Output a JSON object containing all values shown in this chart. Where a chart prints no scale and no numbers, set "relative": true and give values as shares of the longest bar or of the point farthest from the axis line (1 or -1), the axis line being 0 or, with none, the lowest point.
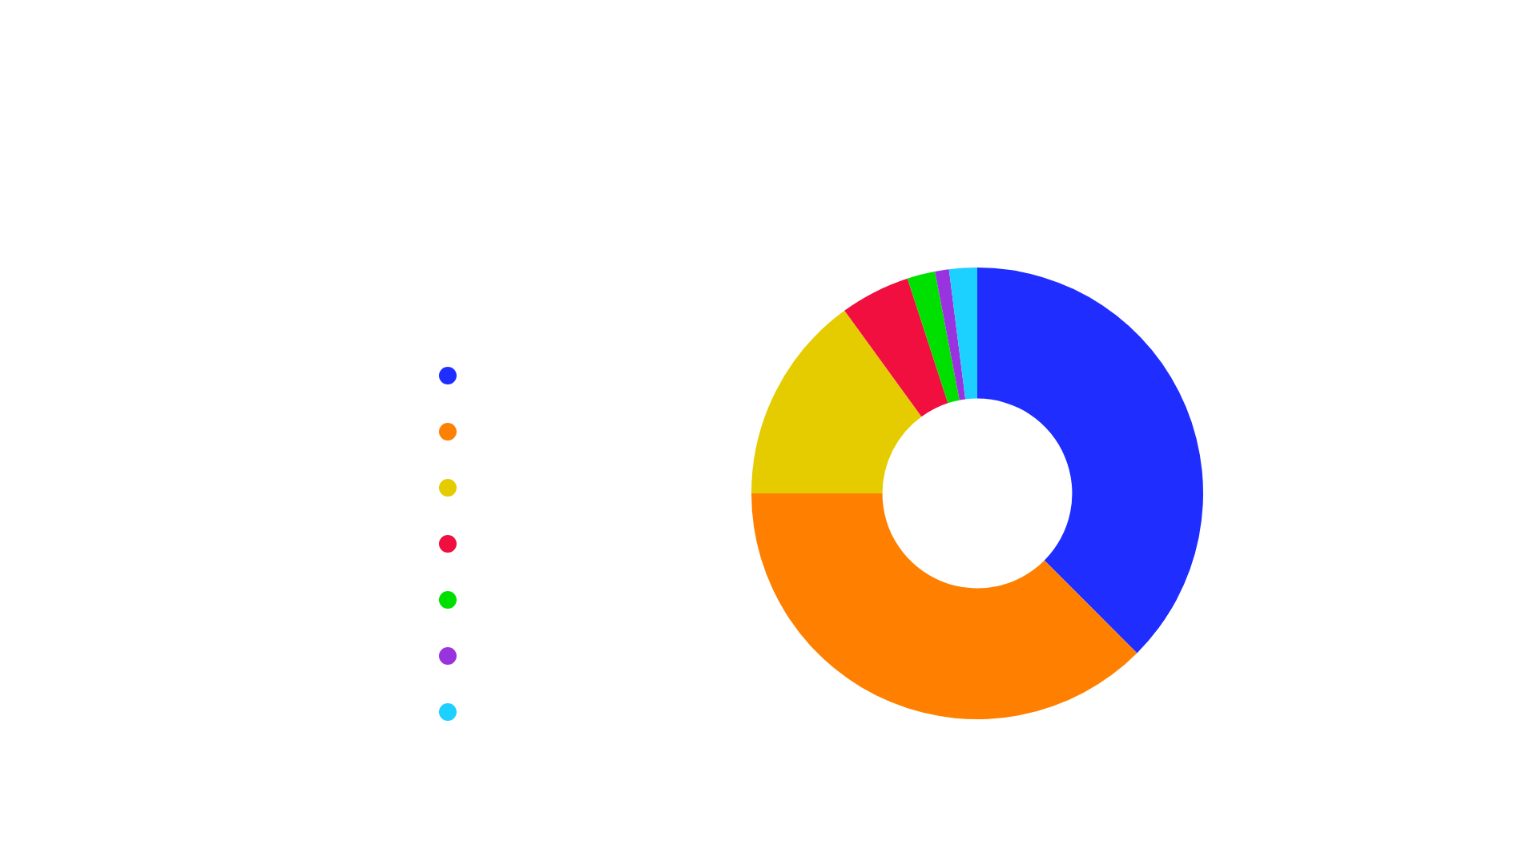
{
  "chart_data": {
    "type": "donut",
    "relative": true,
    "categories": [
      null,
      null,
      null,
      null,
      null,
      null,
      null
    ],
    "values": [
      37.5,
      37.5,
      15,
      5,
      2,
      1,
      2
    ],
    "colors": [
      "#1f2eff",
      "#ff8000",
      "#e5cc00",
      "#f00f3f",
      "#00e000",
      "#9933e0",
      "#1cd0ff"
    ]
  }
}
